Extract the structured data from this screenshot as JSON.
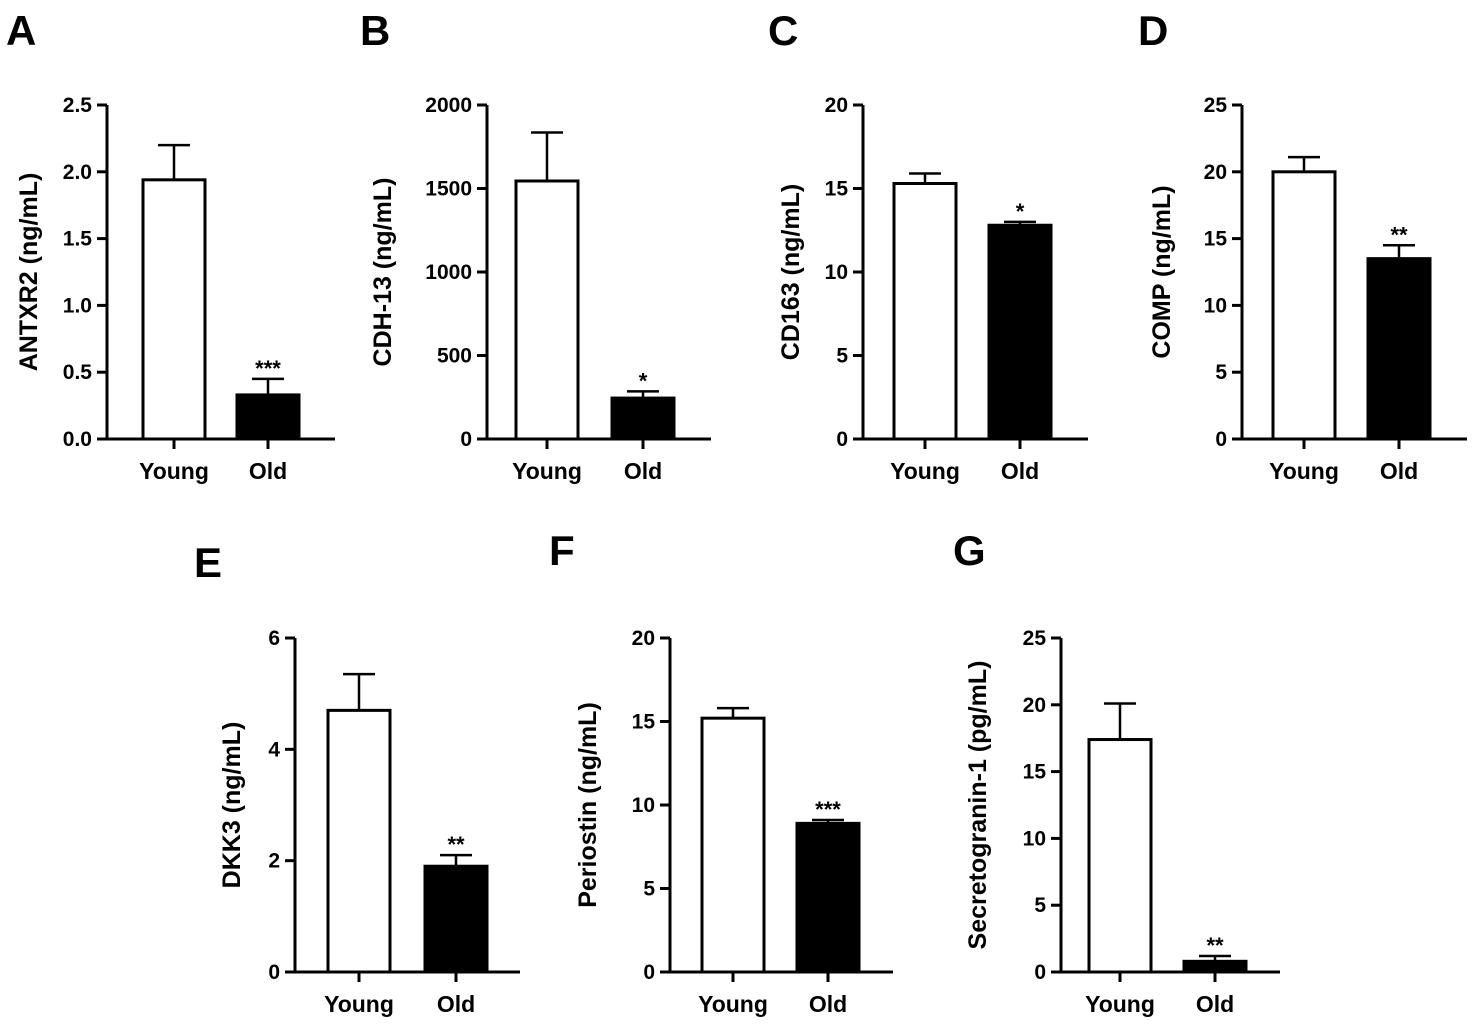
{
  "chart_data": [
    {
      "panel": "A",
      "type": "bar",
      "categories": [
        "Young",
        "Old"
      ],
      "values": [
        1.94,
        0.33
      ],
      "errors": [
        0.26,
        0.12
      ],
      "fills": [
        "#ffffff",
        "#000000"
      ],
      "significance": [
        "",
        "***"
      ],
      "ylabel": "ANTXR2 (ng/mL)",
      "ylim": [
        0,
        2.5
      ],
      "yticks": [
        "0.0",
        "0.5",
        "1.0",
        "1.5",
        "2.0",
        "2.5"
      ]
    },
    {
      "panel": "B",
      "type": "bar",
      "categories": [
        "Young",
        "Old"
      ],
      "values": [
        1545,
        245
      ],
      "errors": [
        290,
        40
      ],
      "fills": [
        "#ffffff",
        "#000000"
      ],
      "significance": [
        "",
        "*"
      ],
      "ylabel": "CDH-13 (ng/mL)",
      "ylim": [
        0,
        2000
      ],
      "yticks": [
        "0",
        "500",
        "1000",
        "1500",
        "2000"
      ]
    },
    {
      "panel": "C",
      "type": "bar",
      "categories": [
        "Young",
        "Old"
      ],
      "values": [
        15.3,
        12.8
      ],
      "errors": [
        0.6,
        0.2
      ],
      "fills": [
        "#ffffff",
        "#000000"
      ],
      "significance": [
        "",
        "*"
      ],
      "ylabel": "CD163 (ng/mL)",
      "ylim": [
        0,
        20
      ],
      "yticks": [
        "0",
        "5",
        "10",
        "15",
        "20"
      ]
    },
    {
      "panel": "D",
      "type": "bar",
      "categories": [
        "Young",
        "Old"
      ],
      "values": [
        20.0,
        13.5
      ],
      "errors": [
        1.1,
        1.0
      ],
      "fills": [
        "#ffffff",
        "#000000"
      ],
      "significance": [
        "",
        "**"
      ],
      "ylabel": "COMP (ng/mL)",
      "ylim": [
        0,
        25
      ],
      "yticks": [
        "0",
        "5",
        "10",
        "15",
        "20",
        "25"
      ]
    },
    {
      "panel": "E",
      "type": "bar",
      "categories": [
        "Young",
        "Old"
      ],
      "values": [
        4.7,
        1.9
      ],
      "errors": [
        0.65,
        0.2
      ],
      "fills": [
        "#ffffff",
        "#000000"
      ],
      "significance": [
        "",
        "**"
      ],
      "ylabel": "DKK3 (ng/mL)",
      "ylim": [
        0,
        6
      ],
      "yticks": [
        "0",
        "2",
        "4",
        "6"
      ]
    },
    {
      "panel": "F",
      "type": "bar",
      "categories": [
        "Young",
        "Old"
      ],
      "values": [
        15.2,
        8.9
      ],
      "errors": [
        0.6,
        0.2
      ],
      "fills": [
        "#ffffff",
        "#000000"
      ],
      "significance": [
        "",
        "***"
      ],
      "ylabel": "Periostin (ng/mL)",
      "ylim": [
        0,
        20
      ],
      "yticks": [
        "0",
        "5",
        "10",
        "15",
        "20"
      ]
    },
    {
      "panel": "G",
      "type": "bar",
      "categories": [
        "Young",
        "Old"
      ],
      "values": [
        17.4,
        0.8
      ],
      "errors": [
        2.7,
        0.4
      ],
      "fills": [
        "#ffffff",
        "#000000"
      ],
      "significance": [
        "",
        "**"
      ],
      "ylabel": "Secretogranin-1 (pg/mL)",
      "ylim": [
        0,
        25
      ],
      "yticks": [
        "0",
        "5",
        "10",
        "15",
        "20",
        "25"
      ]
    }
  ]
}
